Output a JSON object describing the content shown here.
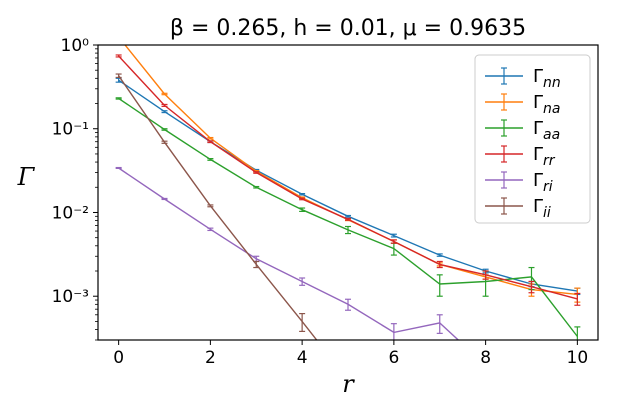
{
  "chart_data": {
    "type": "line",
    "title": "β = 0.265, h = 0.01, μ = 0.9635",
    "xlabel": "r",
    "ylabel": "Γ",
    "xlim": [
      -0.45,
      10.45
    ],
    "ylim": [
      0.0003,
      1.0
    ],
    "yscale": "log",
    "xticks": [
      0,
      2,
      4,
      6,
      8,
      10
    ],
    "xtick_labels": [
      "0",
      "2",
      "4",
      "6",
      "8",
      "10"
    ],
    "yticks": [
      0.001,
      0.01,
      0.1,
      1
    ],
    "ytick_labels": [
      "10⁻³",
      "10⁻²",
      "10⁻¹",
      "10⁰"
    ],
    "grid": false,
    "legend": "top-right",
    "x": [
      0,
      1,
      2,
      3,
      4,
      5,
      6,
      7,
      8,
      9,
      10
    ],
    "series": [
      {
        "name": "Γ_nn",
        "color": "#1f77b4",
        "values": [
          0.38,
          0.16,
          0.07,
          0.032,
          0.0165,
          0.009,
          0.0053,
          0.0031,
          0.002,
          0.0014,
          0.00115
        ],
        "errors": [
          0.02,
          0.004,
          0.0015,
          0.0006,
          0.0003,
          0.0002,
          0.0002,
          0.0001,
          0.0001,
          0.0001,
          0.0001
        ]
      },
      {
        "name": "Γ_na",
        "color": "#ff7f0e",
        "values": [
          1.25,
          0.26,
          0.077,
          0.031,
          0.015,
          0.0082,
          0.0045,
          0.0024,
          0.0017,
          0.0012,
          0.00105
        ],
        "errors": [
          0.05,
          0.005,
          0.0015,
          0.0006,
          0.0003,
          0.0002,
          0.0002,
          0.0001,
          0.0001,
          0.0002,
          0.0002
        ]
      },
      {
        "name": "Γ_aa",
        "color": "#2ca02c",
        "values": [
          0.23,
          0.098,
          0.043,
          0.02,
          0.0108,
          0.0062,
          0.0037,
          0.0014,
          0.0015,
          0.0017,
          0.00033
        ],
        "errors": [
          0.004,
          0.002,
          0.001,
          0.0004,
          0.0005,
          0.0006,
          0.0006,
          0.0004,
          0.0005,
          0.0005,
          0.0001
        ]
      },
      {
        "name": "Γ_rr",
        "color": "#d62728",
        "values": [
          0.74,
          0.19,
          0.07,
          0.03,
          0.0145,
          0.0083,
          0.0045,
          0.0024,
          0.0018,
          0.0013,
          0.00093
        ],
        "errors": [
          0.02,
          0.005,
          0.0015,
          0.0006,
          0.0003,
          0.0002,
          0.0002,
          0.0002,
          0.0002,
          0.0002,
          0.00015
        ]
      },
      {
        "name": "Γ_ri",
        "color": "#9467bd",
        "values": [
          0.034,
          0.0145,
          0.0063,
          0.0028,
          0.0015,
          0.0008,
          0.00037,
          0.00048,
          0.00015,
          null,
          null
        ],
        "errors": [
          0.0004,
          0.0002,
          0.0002,
          0.0002,
          0.00015,
          0.00012,
          0.0001,
          0.00012,
          0.0001,
          null,
          null
        ]
      },
      {
        "name": "Γ_ii",
        "color": "#8c564b",
        "values": [
          0.43,
          0.069,
          0.012,
          0.0024,
          0.0005,
          0.0001,
          null,
          null,
          null,
          null,
          null
        ],
        "errors": [
          0.02,
          0.002,
          0.0003,
          0.0002,
          0.00012,
          5e-05,
          null,
          null,
          null,
          null,
          null
        ]
      }
    ]
  },
  "legend_labels": [
    {
      "main": "Γ",
      "sub": "nn"
    },
    {
      "main": "Γ",
      "sub": "na"
    },
    {
      "main": "Γ",
      "sub": "aa"
    },
    {
      "main": "Γ",
      "sub": "rr"
    },
    {
      "main": "Γ",
      "sub": "ri"
    },
    {
      "main": "Γ",
      "sub": "ii"
    }
  ]
}
